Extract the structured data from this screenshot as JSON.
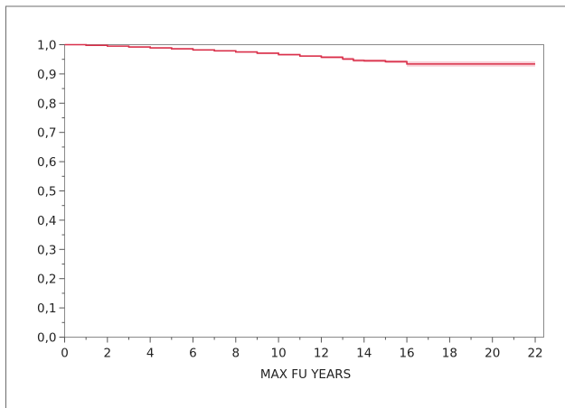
{
  "chart_data": {
    "type": "line",
    "title": "",
    "xlabel": "MAX FU YEARS",
    "ylabel": "",
    "xlim": [
      0,
      22.4
    ],
    "ylim": [
      0,
      1.0
    ],
    "x_ticks": [
      0,
      2,
      4,
      6,
      8,
      10,
      12,
      14,
      16,
      18,
      20,
      22
    ],
    "x_tick_labels": [
      "0",
      "2",
      "4",
      "6",
      "8",
      "10",
      "12",
      "14",
      "16",
      "18",
      "20",
      "22"
    ],
    "y_ticks": [
      0.0,
      0.1,
      0.2,
      0.3,
      0.4,
      0.5,
      0.6,
      0.7,
      0.8,
      0.9,
      1.0
    ],
    "y_tick_labels": [
      "0,0",
      "0,1",
      "0,2",
      "0,3",
      "0,4",
      "0,5",
      "0,6",
      "0,7",
      "0,8",
      "0,9",
      "1,0"
    ],
    "grid": false,
    "legend": "none",
    "series": [
      {
        "color": "#d9304a",
        "band_color": "#f3a8b6",
        "step": true,
        "x": [
          0,
          1,
          2,
          3,
          4,
          5,
          6,
          7,
          8,
          9,
          10,
          11,
          12,
          13,
          13.5,
          14,
          15,
          16,
          22
        ],
        "y": [
          1.0,
          0.998,
          0.995,
          0.992,
          0.989,
          0.986,
          0.982,
          0.979,
          0.975,
          0.971,
          0.966,
          0.961,
          0.957,
          0.951,
          0.946,
          0.945,
          0.942,
          0.934,
          0.934
        ],
        "lower": [
          1.0,
          0.997,
          0.994,
          0.991,
          0.988,
          0.984,
          0.98,
          0.977,
          0.973,
          0.968,
          0.963,
          0.958,
          0.953,
          0.946,
          0.941,
          0.94,
          0.937,
          0.925,
          0.925
        ],
        "upper": [
          1.0,
          0.999,
          0.996,
          0.993,
          0.99,
          0.988,
          0.984,
          0.981,
          0.977,
          0.974,
          0.969,
          0.964,
          0.961,
          0.956,
          0.951,
          0.95,
          0.947,
          0.943,
          0.943
        ]
      }
    ]
  }
}
